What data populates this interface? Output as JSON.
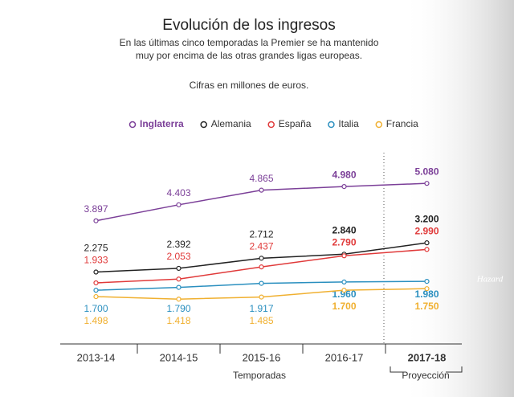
{
  "chart_data": {
    "type": "line",
    "title": "Evolución de los ingresos",
    "subtitle": [
      "En las últimas cinco temporadas la Premier se ha mantenido",
      "muy por encima de las otras grandes ligas europeas."
    ],
    "note": "Cifras en millones de euros.",
    "x_label": "Temporadas",
    "projection_label": "Proyección",
    "photo_credit": "Hazard",
    "categories": [
      "2013-14",
      "2014-15",
      "2015-16",
      "2016-17",
      "2017-18"
    ],
    "ylim": [
      0,
      6000
    ],
    "series": [
      {
        "name": "Inglaterra",
        "color": "#7b3f98",
        "values": [
          3897,
          4403,
          4865,
          4980,
          5080
        ],
        "value_labels": [
          "3.897",
          "4.403",
          "4.865",
          "4.980",
          "5.080"
        ]
      },
      {
        "name": "Alemania",
        "color": "#222222",
        "values": [
          2275,
          2392,
          2712,
          2840,
          3200
        ],
        "value_labels": [
          "2.275",
          "2.392",
          "2.712",
          "2.840",
          "3.200"
        ]
      },
      {
        "name": "España",
        "color": "#e03a3a",
        "values": [
          1933,
          2053,
          2437,
          2790,
          2990
        ],
        "value_labels": [
          "1.933",
          "2.053",
          "2.437",
          "2.790",
          "2.990"
        ]
      },
      {
        "name": "Italia",
        "color": "#2a8fbf",
        "values": [
          1700,
          1790,
          1917,
          1960,
          1980
        ],
        "value_labels": [
          "1.700",
          "1.790",
          "1.917",
          "1.960",
          "1.980"
        ]
      },
      {
        "name": "Francia",
        "color": "#f0b030",
        "values": [
          1498,
          1418,
          1485,
          1700,
          1750
        ],
        "value_labels": [
          "1.498",
          "1.418",
          "1.485",
          "1.700",
          "1.750"
        ]
      }
    ]
  }
}
